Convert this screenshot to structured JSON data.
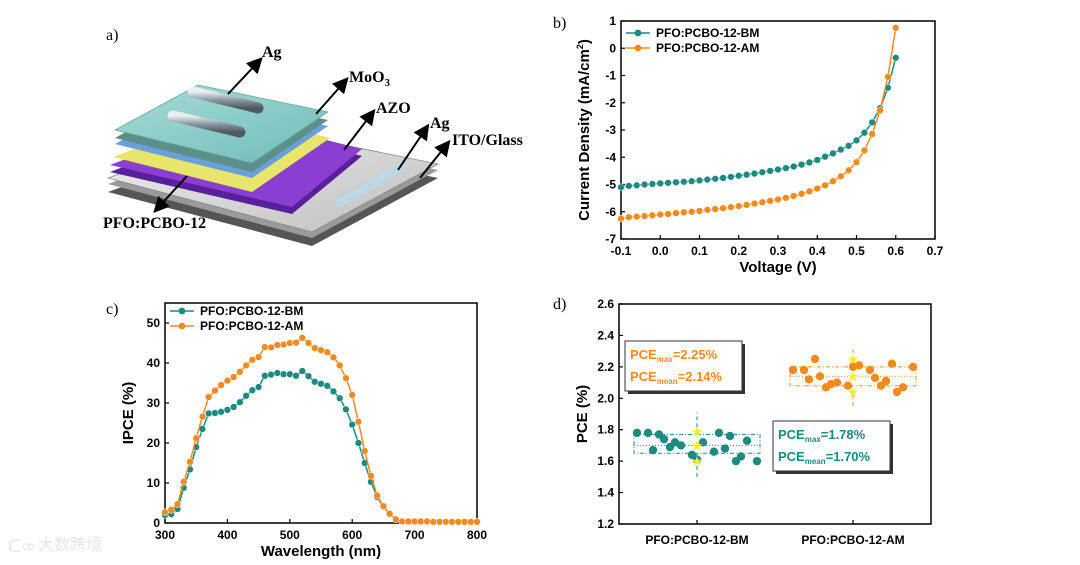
{
  "colors": {
    "bm": "#1b8a80",
    "am": "#f28a1c",
    "star": "#f4f01a"
  },
  "watermark": "大数跨境",
  "panel_a": {
    "label": "a)",
    "layers": {
      "ag_top": "Ag",
      "moo3": "MoO",
      "moo3_sub": "3",
      "azo": "AZO",
      "ag_bottom": "Ag",
      "ito": "ITO/Glass",
      "active": "PFO:PCBO-12"
    }
  },
  "chart_data": [
    {
      "panel": "b)",
      "type": "line",
      "xlabel": "Voltage (V)",
      "ylabel_parts": [
        "Current Density (mA/cm",
        "2",
        ")"
      ],
      "xlim": [
        -0.1,
        0.7
      ],
      "ylim": [
        -7,
        1
      ],
      "xticks": [
        "-0.1",
        "0.0",
        "0.1",
        "0.2",
        "0.3",
        "0.4",
        "0.5",
        "0.6",
        "0.7"
      ],
      "yticks": [
        "-7",
        "-6",
        "-5",
        "-4",
        "-3",
        "-2",
        "-1",
        "0",
        "1"
      ],
      "legend": "top-left",
      "x": [
        -0.1,
        -0.08,
        -0.06,
        -0.04,
        -0.02,
        0,
        0.02,
        0.04,
        0.06,
        0.08,
        0.1,
        0.12,
        0.14,
        0.16,
        0.18,
        0.2,
        0.22,
        0.24,
        0.26,
        0.28,
        0.3,
        0.32,
        0.34,
        0.36,
        0.38,
        0.4,
        0.42,
        0.44,
        0.46,
        0.48,
        0.5,
        0.52,
        0.54,
        0.56,
        0.58,
        0.6
      ],
      "series": [
        {
          "name": "PFO:PCBO-12-BM",
          "values": [
            -5.1,
            -5.05,
            -5.03,
            -5.0,
            -4.98,
            -4.96,
            -4.94,
            -4.92,
            -4.9,
            -4.88,
            -4.85,
            -4.82,
            -4.79,
            -4.76,
            -4.72,
            -4.68,
            -4.64,
            -4.6,
            -4.55,
            -4.5,
            -4.45,
            -4.4,
            -4.34,
            -4.27,
            -4.19,
            -4.1,
            -3.98,
            -3.86,
            -3.72,
            -3.58,
            -3.38,
            -3.1,
            -2.72,
            -2.2,
            -1.45,
            -0.35
          ]
        },
        {
          "name": "PFO:PCBO-12-AM",
          "values": [
            -6.25,
            -6.2,
            -6.18,
            -6.16,
            -6.13,
            -6.1,
            -6.08,
            -6.05,
            -6.02,
            -6.0,
            -5.97,
            -5.93,
            -5.9,
            -5.87,
            -5.83,
            -5.79,
            -5.75,
            -5.7,
            -5.65,
            -5.6,
            -5.55,
            -5.49,
            -5.42,
            -5.34,
            -5.25,
            -5.15,
            -5.03,
            -4.88,
            -4.7,
            -4.48,
            -4.18,
            -3.75,
            -3.15,
            -2.28,
            -1.05,
            0.75
          ]
        }
      ]
    },
    {
      "panel": "c)",
      "type": "line",
      "xlabel": "Wavelength (nm)",
      "ylabel": "IPCE (%)",
      "xlim": [
        300,
        800
      ],
      "ylim": [
        0,
        55
      ],
      "xticks": [
        "300",
        "400",
        "500",
        "600",
        "700",
        "800"
      ],
      "yticks": [
        "0",
        "10",
        "20",
        "30",
        "40",
        "50"
      ],
      "legend": "top-left",
      "x": [
        300,
        310,
        320,
        330,
        340,
        350,
        360,
        370,
        380,
        390,
        400,
        410,
        420,
        430,
        440,
        450,
        460,
        470,
        480,
        490,
        500,
        510,
        520,
        530,
        540,
        550,
        560,
        570,
        580,
        590,
        600,
        610,
        620,
        630,
        640,
        650,
        660,
        670,
        680,
        690,
        700,
        710,
        720,
        730,
        740,
        750,
        760,
        770,
        780,
        790,
        800
      ],
      "series": [
        {
          "name": "PFO:PCBO-12-BM",
          "values": [
            2,
            2.2,
            3.5,
            8.8,
            13.4,
            19,
            23.5,
            27.4,
            27.5,
            27.8,
            28.3,
            29,
            30.2,
            31.8,
            33.2,
            34,
            36.8,
            37.1,
            37.5,
            37.2,
            37.2,
            36.8,
            38,
            36.7,
            35.3,
            34.8,
            34.3,
            32.9,
            31.2,
            28.4,
            24.6,
            20,
            15,
            10.3,
            6.5,
            4.1,
            2.3,
            1.0,
            0.4,
            0.3,
            0.3,
            0.3,
            0.3,
            0.2,
            0.2,
            0.2,
            0.2,
            0.2,
            0.2,
            0.2,
            0.2
          ]
        },
        {
          "name": "PFO:PCBO-12-AM",
          "values": [
            2.7,
            3.3,
            4.7,
            10.3,
            15.3,
            21.2,
            26.6,
            31.5,
            33.1,
            34.5,
            35.6,
            36.5,
            37.8,
            39.4,
            40.8,
            41.5,
            44,
            43.9,
            44.5,
            44.6,
            45,
            45.1,
            46.3,
            45,
            43.7,
            43.2,
            42.7,
            41.4,
            39.4,
            36.2,
            32,
            25.3,
            18,
            11.8,
            6.9,
            4.2,
            2.3,
            0.9,
            0.4,
            0.4,
            0.4,
            0.4,
            0.4,
            0.3,
            0.3,
            0.3,
            0.3,
            0.3,
            0.3,
            0.3,
            0.3
          ]
        }
      ]
    },
    {
      "panel": "d)",
      "type": "scatter",
      "ylabel": "PCE (%)",
      "ylim": [
        1.2,
        2.6
      ],
      "yticks": [
        "1.2",
        "1.4",
        "1.6",
        "1.8",
        "2.0",
        "2.2",
        "2.4",
        "2.6"
      ],
      "categories": [
        "PFO:PCBO-12-BM",
        "PFO:PCBO-12-AM"
      ],
      "series": [
        {
          "name": "PFO:PCBO-12-BM",
          "values": [
            1.78,
            1.78,
            1.77,
            1.69,
            1.7,
            1.64,
            1.72,
            1.66,
            1.68,
            1.6,
            1.73,
            1.6,
            1.67,
            1.72,
            1.61,
            1.78,
            1.63,
            1.74,
            1.76
          ],
          "box": [
            1.65,
            1.7,
            1.77
          ],
          "whisker": [
            1.5,
            1.91
          ],
          "stars": [
            1.79,
            1.7,
            1.6
          ],
          "annotation": {
            "max_label": "PCE",
            "max_sub": "max",
            "max_value": "=1.78%",
            "mean_label": "PCE",
            "mean_sub": "mean",
            "mean_value": "=1.70%"
          }
        },
        {
          "name": "PFO:PCBO-12-AM",
          "values": [
            2.18,
            2.18,
            2.25,
            2.07,
            2.1,
            2.08,
            2.21,
            2.18,
            2.08,
            2.22,
            2.07,
            2.2,
            2.12,
            2.09,
            2.2,
            2.13,
            2.04,
            2.14,
            2.11
          ],
          "box": [
            2.08,
            2.14,
            2.2
          ],
          "whisker": [
            1.95,
            2.33
          ],
          "stars": [
            2.25,
            2.14,
            2.04
          ],
          "annotation": {
            "max_label": "PCE",
            "max_sub": "max",
            "max_value": "=2.25%",
            "mean_label": "PCE",
            "mean_sub": "mean",
            "mean_value": "=2.14%"
          }
        }
      ]
    }
  ]
}
